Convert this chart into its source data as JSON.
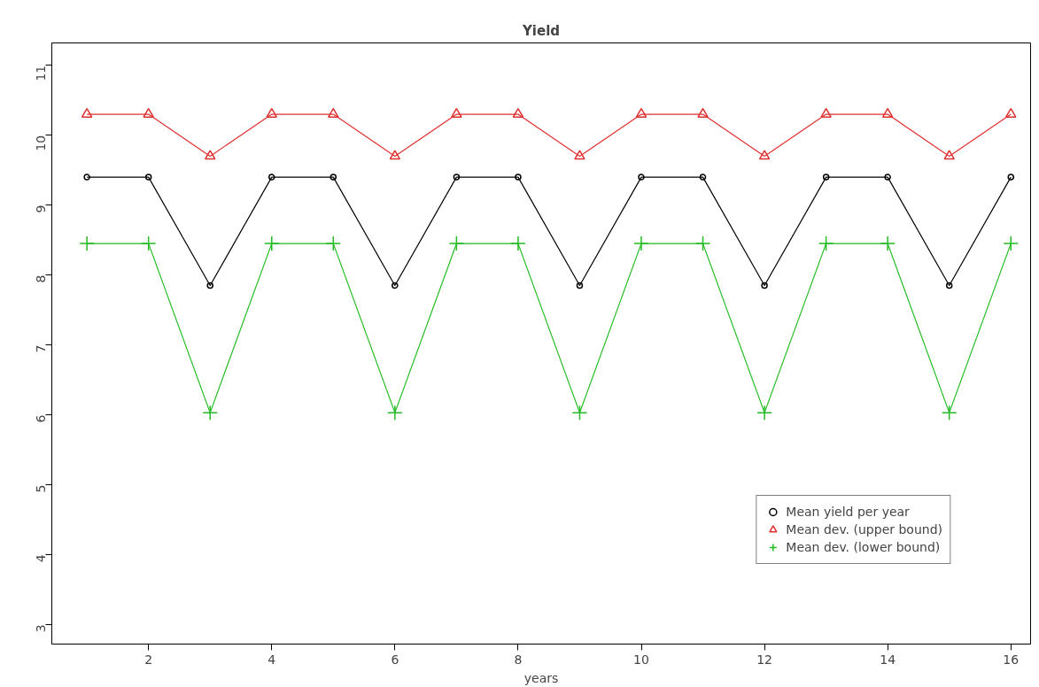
{
  "chart_data": {
    "type": "line",
    "title": "Yield",
    "xlabel": "years",
    "x": [
      1,
      2,
      3,
      4,
      5,
      6,
      7,
      8,
      9,
      10,
      11,
      12,
      13,
      14,
      15,
      16
    ],
    "series": [
      {
        "name": "Mean yield per year",
        "color": "#000000",
        "marker": "circle",
        "values": [
          9.4,
          9.4,
          7.85,
          9.4,
          9.4,
          7.85,
          9.4,
          9.4,
          7.85,
          9.4,
          9.4,
          7.85,
          9.4,
          9.4,
          7.85,
          9.4
        ]
      },
      {
        "name": "Mean dev. (upper bound)",
        "color": "#df3030",
        "marker": "triangle",
        "values": [
          10.3,
          10.3,
          9.7,
          10.3,
          10.3,
          9.7,
          10.3,
          10.3,
          9.7,
          10.3,
          10.3,
          9.7,
          10.3,
          10.3,
          9.7,
          10.3
        ]
      },
      {
        "name": "Mean dev. (lower bound)",
        "color": "#22bb22",
        "marker": "cross",
        "values": [
          8.45,
          8.45,
          6.03,
          8.45,
          8.45,
          6.03,
          8.45,
          8.45,
          6.03,
          8.45,
          8.45,
          6.03,
          8.45,
          8.45,
          6.03,
          8.45
        ]
      }
    ],
    "xlim": [
      0.43,
      16.32
    ],
    "ylim": [
      2.72,
      11.32
    ],
    "xticks": [
      2,
      4,
      6,
      8,
      10,
      12,
      14,
      16
    ],
    "yticks": [
      3,
      4,
      5,
      6,
      7,
      8,
      9,
      10,
      11
    ],
    "grid": false,
    "legend": "bottom right"
  }
}
